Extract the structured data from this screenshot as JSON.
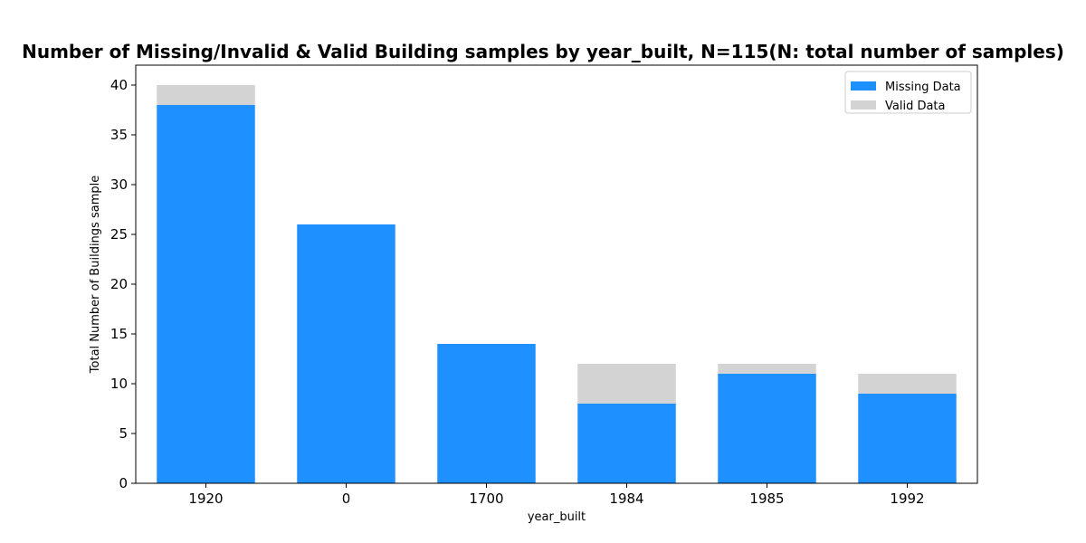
{
  "chart_data": {
    "type": "bar",
    "stacked": true,
    "title": "Number of Missing/Invalid & Valid Building samples by year_built, N=115(N: total number of samples)",
    "xlabel": "year_built",
    "ylabel": "Total Number of Buildings sample",
    "categories": [
      "1920",
      "0",
      "1700",
      "1984",
      "1985",
      "1992"
    ],
    "series": [
      {
        "name": "Missing Data",
        "color": "#1e90ff",
        "values": [
          38,
          26,
          14,
          8,
          11,
          9
        ]
      },
      {
        "name": "Valid Data",
        "color": "#d3d3d3",
        "values": [
          2,
          0,
          0,
          4,
          1,
          2
        ]
      }
    ],
    "ylim": [
      0,
      42
    ],
    "yticks": [
      0,
      5,
      10,
      15,
      20,
      25,
      30,
      35,
      40
    ],
    "grid": false,
    "legend": "top-right"
  }
}
